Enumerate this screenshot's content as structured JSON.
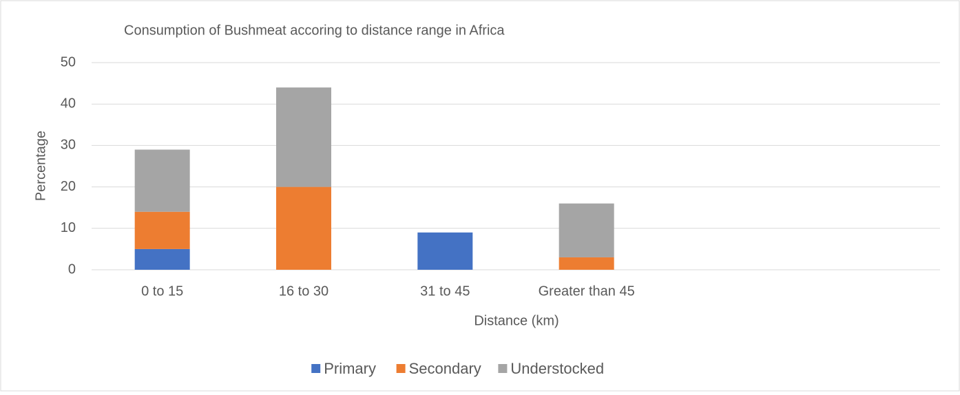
{
  "chart_data": {
    "type": "stacked_bar",
    "title": "Consumption of Bushmeat accoring to distance range in Africa",
    "x_label": "Distance (km)",
    "y_label": "Percentage",
    "categories": [
      "0 to 15",
      "16 to 30",
      "31 to 45",
      "Greater than 45",
      null,
      null
    ],
    "series": [
      {
        "name": "Primary",
        "color": "#4472c4",
        "values": [
          5,
          0,
          9,
          0,
          null,
          null
        ]
      },
      {
        "name": "Secondary",
        "color": "#ed7d31",
        "values": [
          9,
          20,
          0,
          3,
          null,
          null
        ]
      },
      {
        "name": "Understocked",
        "color": "#a5a5a5",
        "values": [
          15,
          24,
          0,
          13,
          null,
          null
        ]
      }
    ],
    "ylim": [
      0,
      50
    ],
    "yticks": [
      0,
      10,
      20,
      30,
      40,
      50
    ],
    "grid": true,
    "legend": "bottom"
  }
}
